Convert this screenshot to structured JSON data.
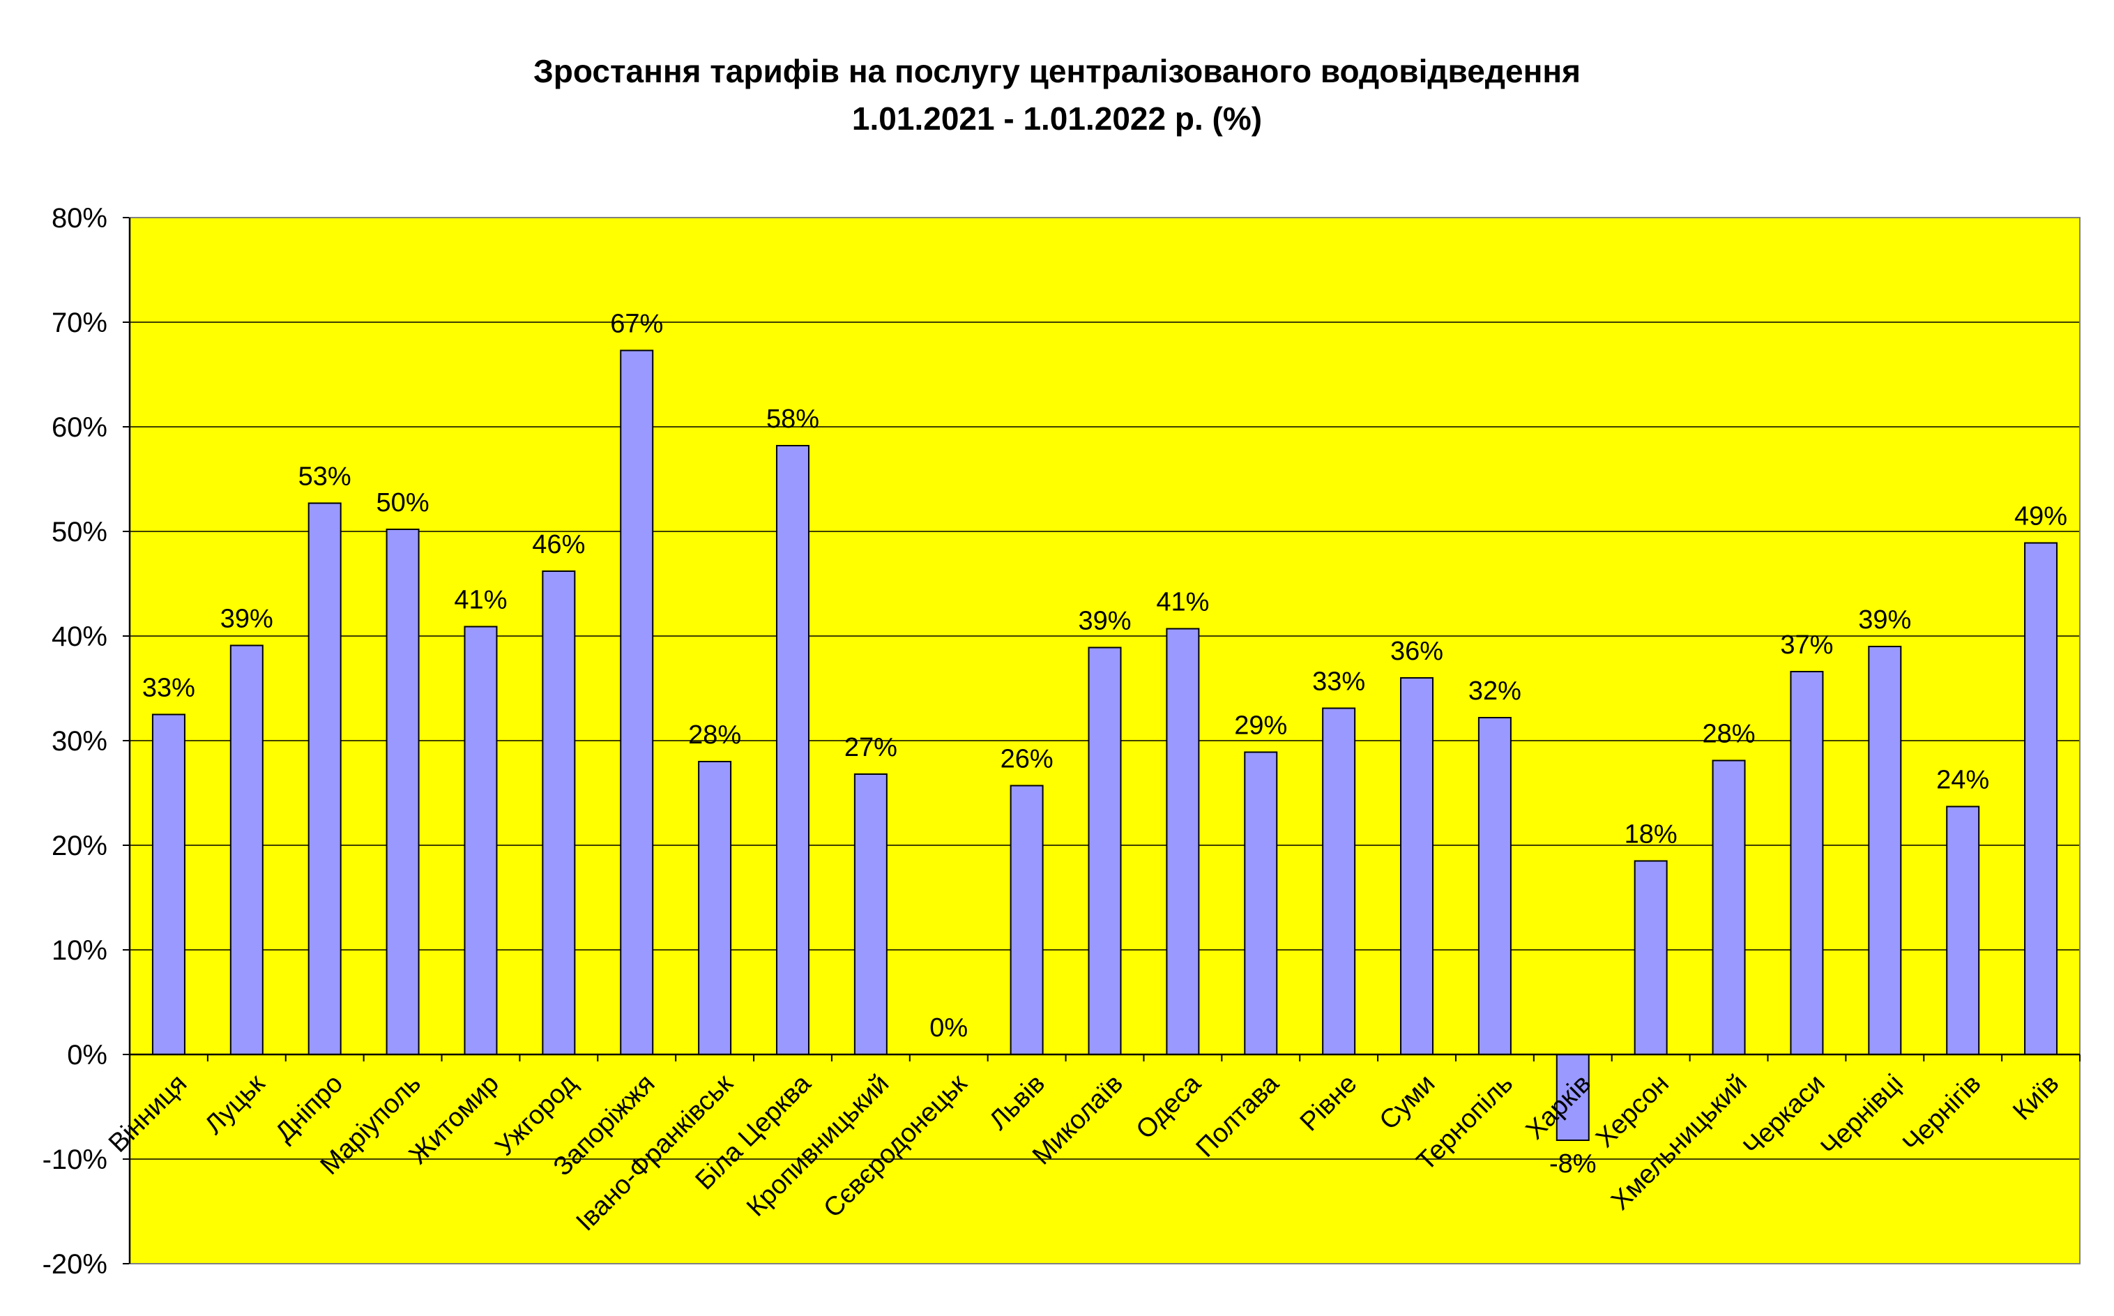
{
  "chart_data": {
    "type": "bar",
    "title": "Зростання тарифів на послугу централізованого водовідведення",
    "subtitle": "1.01.2021 - 1.01.2022 р. (%)",
    "xlabel": "",
    "ylabel": "",
    "ylim": [
      -20,
      80
    ],
    "yticks": [
      80,
      70,
      60,
      50,
      40,
      30,
      20,
      10,
      0,
      -10,
      -20
    ],
    "ytick_suffix": "%",
    "grid": true,
    "legend": "none",
    "categories": [
      "Вінниця",
      "Луцьк",
      "Дніпро",
      "Маріуполь",
      "Житомир",
      "Ужгород",
      "Запоріжжя",
      "Івано-Франківськ",
      "Біла Церква",
      "Кропивницький",
      "Сєвєродонецьк",
      "Львів",
      "Миколаїв",
      "Одеса",
      "Полтава",
      "Рівне",
      "Суми",
      "Тернопіль",
      "Харків",
      "Херсон",
      "Хмельницький",
      "Черкаси",
      "Чернівці",
      "Чернігів",
      "Київ"
    ],
    "values": [
      32.5,
      39.1,
      52.7,
      50.2,
      40.9,
      46.2,
      67.3,
      28.0,
      58.2,
      26.8,
      0,
      25.7,
      38.9,
      40.7,
      28.9,
      33.1,
      36.0,
      32.2,
      -8.2,
      18.5,
      28.1,
      36.6,
      39.0,
      23.7,
      48.9
    ],
    "data_labels": [
      "33%",
      "39%",
      "53%",
      "50%",
      "41%",
      "46%",
      "67%",
      "28%",
      "58%",
      "27%",
      "0%",
      "26%",
      "39%",
      "41%",
      "29%",
      "33%",
      "36%",
      "32%",
      "-8%",
      "18%",
      "28%",
      "37%",
      "39%",
      "24%",
      "49%"
    ],
    "colors": {
      "plot_background": "#FFFF00",
      "bar_fill": "#9999FF",
      "bar_stroke": "#000000",
      "gridline": "#000000"
    }
  }
}
